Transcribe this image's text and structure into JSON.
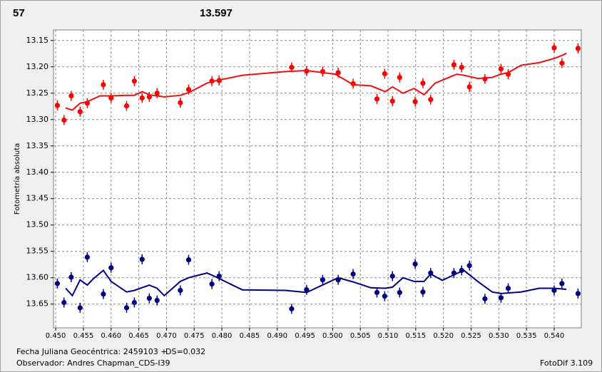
{
  "chart_data": {
    "type": "scatter",
    "title": "57",
    "subtitle": "13.597",
    "title_color": "#ff0000",
    "subtitle_color": "#000080",
    "y_label": "Fotometría absoluta",
    "grid": true,
    "xlim": [
      0.4496,
      0.5449
    ],
    "ylim": [
      13.695,
      13.13
    ],
    "xticks": [
      {
        "value": 0.45,
        "label": "0.450"
      },
      0.455,
      {
        "value": 0.46,
        "label": "0.460"
      },
      0.465,
      {
        "value": 0.47,
        "label": "0.470"
      },
      0.475,
      {
        "value": 0.48,
        "label": "0.480"
      },
      0.485,
      {
        "value": 0.49,
        "label": "0.490"
      },
      0.495,
      {
        "value": 0.5,
        "label": "0.500"
      },
      0.505,
      {
        "value": 0.51,
        "label": "0.510"
      },
      0.515,
      {
        "value": 0.52,
        "label": "0.520"
      },
      0.525,
      {
        "value": 0.53,
        "label": "0.530"
      },
      0.535,
      {
        "value": 0.54,
        "label": "0.540"
      }
    ],
    "yticks": [
      13.15,
      {
        "value": 13.2,
        "label": "13.20"
      },
      13.25,
      {
        "value": 13.3,
        "label": "13.30"
      },
      13.35,
      {
        "value": 13.4,
        "label": "13.40"
      },
      13.45,
      {
        "value": 13.5,
        "label": "13.50"
      },
      13.55,
      {
        "value": 13.6,
        "label": "13.60"
      },
      13.65
    ],
    "series": [
      {
        "type": "scatter",
        "color": "#ff0000",
        "x": [
          0.4503,
          0.4515,
          0.4528,
          0.4544,
          0.4557,
          0.4586,
          0.46,
          0.4628,
          0.4642,
          0.4656,
          0.4669,
          0.4683,
          0.4725,
          0.474,
          0.4782,
          0.4795,
          0.4926,
          0.4953,
          0.4982,
          0.501,
          0.5037,
          0.508,
          0.5094,
          0.5108,
          0.5121,
          0.5149,
          0.5163,
          0.5177,
          0.5219,
          0.5233,
          0.5247,
          0.5275,
          0.5304,
          0.5317,
          0.54,
          0.5414,
          0.5443
        ],
        "values": [
          13.273,
          13.301,
          13.255,
          13.285,
          13.269,
          13.234,
          13.259,
          13.274,
          13.227,
          13.259,
          13.257,
          13.25,
          13.268,
          13.243,
          13.227,
          13.226,
          13.201,
          13.208,
          13.209,
          13.211,
          13.232,
          13.261,
          13.213,
          13.265,
          13.22,
          13.266,
          13.231,
          13.262,
          13.196,
          13.201,
          13.238,
          13.223,
          13.204,
          13.214,
          13.164,
          13.193,
          13.165
        ]
      },
      {
        "type": "line",
        "color": "#ee1111",
        "x": [
          0.4518,
          0.453,
          0.4544,
          0.4557,
          0.458,
          0.46,
          0.4628,
          0.4642,
          0.4656,
          0.4669,
          0.4683,
          0.4696,
          0.4725,
          0.474,
          0.4773,
          0.4786,
          0.4837,
          0.4915,
          0.4953,
          0.5005,
          0.5037,
          0.5069,
          0.5095,
          0.5108,
          0.5127,
          0.5147,
          0.5165,
          0.5185,
          0.5224,
          0.5237,
          0.5262,
          0.5288,
          0.5304,
          0.5317,
          0.534,
          0.5373,
          0.54,
          0.5417,
          0.5422
        ],
        "values": [
          13.278,
          13.282,
          13.269,
          13.266,
          13.255,
          13.255,
          13.254,
          13.254,
          13.247,
          13.253,
          13.255,
          13.257,
          13.254,
          13.249,
          13.231,
          13.227,
          13.216,
          13.209,
          13.207,
          13.214,
          13.234,
          13.236,
          13.247,
          13.238,
          13.25,
          13.241,
          13.253,
          13.231,
          13.214,
          13.216,
          13.222,
          13.22,
          13.214,
          13.211,
          13.197,
          13.192,
          13.184,
          13.177,
          13.174
        ]
      },
      {
        "type": "scatter",
        "color": "#000080",
        "x": [
          0.4503,
          0.4515,
          0.4528,
          0.4544,
          0.4557,
          0.4586,
          0.46,
          0.4628,
          0.4642,
          0.4656,
          0.4669,
          0.4683,
          0.4725,
          0.474,
          0.4782,
          0.4795,
          0.4926,
          0.4953,
          0.4982,
          0.501,
          0.5037,
          0.508,
          0.5094,
          0.5108,
          0.5121,
          0.5149,
          0.5163,
          0.5177,
          0.5219,
          0.5233,
          0.5247,
          0.5275,
          0.5304,
          0.5317,
          0.54,
          0.5414,
          0.5443
        ],
        "values": [
          13.611,
          13.647,
          13.599,
          13.657,
          13.561,
          13.631,
          13.581,
          13.657,
          13.647,
          13.565,
          13.639,
          13.643,
          13.624,
          13.566,
          13.612,
          13.597,
          13.659,
          13.623,
          13.604,
          13.604,
          13.593,
          13.628,
          13.635,
          13.597,
          13.628,
          13.574,
          13.627,
          13.591,
          13.591,
          13.586,
          13.577,
          13.64,
          13.638,
          13.62,
          13.624,
          13.611,
          13.63
        ]
      },
      {
        "type": "line",
        "color": "#000080",
        "x": [
          0.4518,
          0.453,
          0.4544,
          0.4557,
          0.4567,
          0.4586,
          0.46,
          0.4628,
          0.4642,
          0.4669,
          0.4683,
          0.4696,
          0.4725,
          0.474,
          0.4773,
          0.4786,
          0.4837,
          0.4915,
          0.4953,
          0.501,
          0.5037,
          0.5069,
          0.5095,
          0.5108,
          0.5127,
          0.5147,
          0.5165,
          0.5177,
          0.5198,
          0.5224,
          0.5237,
          0.5262,
          0.5288,
          0.5304,
          0.534,
          0.5373,
          0.54,
          0.5422
        ],
        "values": [
          13.62,
          13.634,
          13.604,
          13.614,
          13.603,
          13.586,
          13.607,
          13.627,
          13.624,
          13.614,
          13.62,
          13.634,
          13.607,
          13.6,
          13.591,
          13.597,
          13.623,
          13.624,
          13.628,
          13.6,
          13.608,
          13.619,
          13.62,
          13.618,
          13.6,
          13.607,
          13.607,
          13.593,
          13.605,
          13.592,
          13.586,
          13.607,
          13.627,
          13.63,
          13.627,
          13.62,
          13.62,
          13.622
        ]
      }
    ]
  },
  "footer": {
    "date_label": "Fecha Juliana Geocéntrica: 2459103 +",
    "ds": "DS=0.032",
    "observer": "Observador: Andres Chapman_CDS-I39",
    "software": "FotoDif 3.109"
  }
}
